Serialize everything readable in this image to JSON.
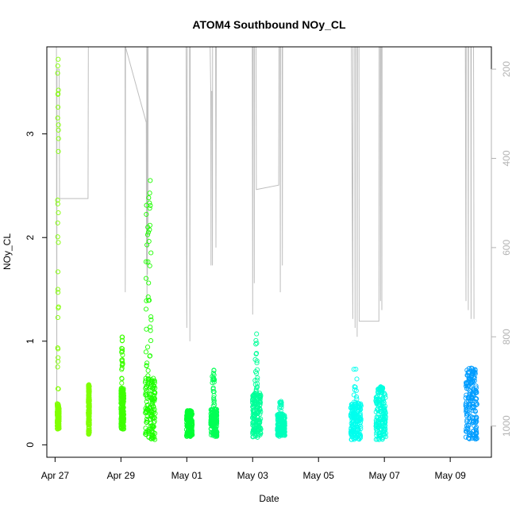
{
  "chart_data": {
    "type": "scatter",
    "title": "ATOM4 Southbound NOy_CL",
    "xlabel": "Date",
    "ylabel": "NOy_CL",
    "secondary_ylabel": "",
    "x_range": [
      "2018-04-26T18:00",
      "2018-05-10T06:00"
    ],
    "ylim": [
      -0.12,
      3.84
    ],
    "y2lim": [
      1070,
      150
    ],
    "x_ticks": [
      {
        "date": "2018-04-27",
        "label": "Apr 27"
      },
      {
        "date": "2018-04-29",
        "label": "Apr 29"
      },
      {
        "date": "2018-05-01",
        "label": "May 01"
      },
      {
        "date": "2018-05-03",
        "label": "May 03"
      },
      {
        "date": "2018-05-05",
        "label": "May 05"
      },
      {
        "date": "2018-05-07",
        "label": "May 07"
      },
      {
        "date": "2018-05-09",
        "label": "May 09"
      }
    ],
    "y_ticks": [
      0,
      1,
      2,
      3
    ],
    "y2_ticks": [
      200,
      400,
      600,
      800,
      1000
    ],
    "grid": false,
    "marker": "open-circle",
    "colors": {
      "point_scale": [
        "#80ff00",
        "#00ff00",
        "#00ffcc",
        "#0099ff"
      ],
      "pressure_line": "#bebebe"
    },
    "flights": [
      {
        "start": "2018-04-27T01:30",
        "end": "2018-04-27T03:00",
        "color": "#80ff00",
        "base": [
          0.15,
          0.4
        ],
        "max": 3.72,
        "plume_start": 0.25,
        "plume_end": 0.75
      },
      {
        "start": "2018-04-28T00:15",
        "end": "2018-04-28T01:05",
        "color": "#7fff00",
        "base": [
          0.1,
          0.45
        ],
        "max": 0.58,
        "plume_start": 0.1,
        "plume_end": 0.9
      },
      {
        "start": "2018-04-29T00:00",
        "end": "2018-04-29T02:10",
        "color": "#3dff00",
        "base": [
          0.15,
          0.55
        ],
        "max": 1.04,
        "plume_start": 0.2,
        "plume_end": 0.6
      },
      {
        "start": "2018-04-29T17:45",
        "end": "2018-04-30T01:00",
        "color": "#1eff00",
        "base": [
          0.05,
          0.65
        ],
        "max": 2.55,
        "plume_start": 0.05,
        "plume_end": 0.6
      },
      {
        "start": "2018-04-30T23:45",
        "end": "2018-05-01T04:00",
        "color": "#00ff33",
        "base": [
          0.08,
          0.3
        ],
        "max": 0.33,
        "plume_start": 0.1,
        "plume_end": 0.9
      },
      {
        "start": "2018-05-01T17:30",
        "end": "2018-05-01T22:00",
        "color": "#00ff55",
        "base": [
          0.08,
          0.35
        ],
        "max": 0.72,
        "plume_start": 0.2,
        "plume_end": 0.6
      },
      {
        "start": "2018-05-02T23:45",
        "end": "2018-05-03T06:00",
        "color": "#00ff99",
        "base": [
          0.07,
          0.5
        ],
        "max": 1.07,
        "plume_start": 0.3,
        "plume_end": 0.6
      },
      {
        "start": "2018-05-03T18:00",
        "end": "2018-05-03T23:30",
        "color": "#00ffbb",
        "base": [
          0.08,
          0.3
        ],
        "max": 0.42,
        "plume_start": 0.3,
        "plume_end": 0.6
      },
      {
        "start": "2018-05-05T23:30",
        "end": "2018-05-06T07:00",
        "color": "#00ffee",
        "base": [
          0.05,
          0.4
        ],
        "max": 0.73,
        "plume_start": 0.3,
        "plume_end": 0.6
      },
      {
        "start": "2018-05-06T17:45",
        "end": "2018-05-07T01:00",
        "color": "#00ffe0",
        "base": [
          0.05,
          0.5
        ],
        "max": 0.56,
        "plume_start": 0.2,
        "plume_end": 0.7
      },
      {
        "start": "2018-05-09T11:15",
        "end": "2018-05-09T19:30",
        "color": "#009dff",
        "base": [
          0.05,
          0.6
        ],
        "max": 0.74,
        "plume_start": 0.1,
        "plume_end": 0.9
      }
    ],
    "pressure_profile": [
      [
        "2018-04-27T00:00",
        150
      ],
      [
        "2018-04-27T01:00",
        150
      ],
      [
        "2018-04-27T01:15",
        1000
      ],
      [
        "2018-04-27T01:25",
        200
      ],
      [
        "2018-04-27T03:00",
        200
      ],
      [
        "2018-04-27T03:15",
        490
      ],
      [
        "2018-04-28T00:00",
        490
      ],
      [
        "2018-04-28T00:15",
        150
      ],
      [
        "2018-04-28T17:30",
        150
      ],
      [
        "2018-04-29T03:00",
        150
      ],
      [
        "2018-04-29T03:10",
        700
      ],
      [
        "2018-04-29T03:20",
        150
      ],
      [
        "2018-04-29T18:30",
        320
      ],
      [
        "2018-04-29T18:40",
        640
      ],
      [
        "2018-04-29T18:50",
        150
      ],
      [
        "2018-04-29T19:00",
        720
      ],
      [
        "2018-04-29T19:10",
        150
      ],
      [
        "2018-04-29T19:20",
        660
      ],
      [
        "2018-04-29T19:30",
        150
      ],
      [
        "2018-04-29T19:40",
        600
      ],
      [
        "2018-04-29T19:50",
        150
      ],
      [
        "2018-04-29T20:30",
        150
      ],
      [
        "2018-04-30T00:00",
        150
      ],
      [
        "2018-04-30T23:30",
        150
      ],
      [
        "2018-05-01T00:00",
        780
      ],
      [
        "2018-05-01T00:20",
        150
      ],
      [
        "2018-05-01T02:00",
        150
      ],
      [
        "2018-05-01T02:15",
        810
      ],
      [
        "2018-05-01T02:30",
        150
      ],
      [
        "2018-05-01T17:00",
        150
      ],
      [
        "2018-05-01T17:30",
        250
      ],
      [
        "2018-05-01T17:40",
        640
      ],
      [
        "2018-05-01T17:50",
        250
      ],
      [
        "2018-05-01T18:30",
        250
      ],
      [
        "2018-05-01T18:40",
        640
      ],
      [
        "2018-05-01T18:50",
        150
      ],
      [
        "2018-05-01T21:00",
        150
      ],
      [
        "2018-05-01T21:15",
        600
      ],
      [
        "2018-05-01T21:30",
        150
      ],
      [
        "2018-05-02T23:45",
        150
      ],
      [
        "2018-05-03T00:00",
        750
      ],
      [
        "2018-05-03T00:10",
        150
      ],
      [
        "2018-05-03T01:00",
        150
      ],
      [
        "2018-05-03T01:10",
        680
      ],
      [
        "2018-05-03T01:20",
        150
      ],
      [
        "2018-05-03T02:30",
        150
      ],
      [
        "2018-05-03T02:40",
        470
      ],
      [
        "2018-05-03T19:00",
        460
      ],
      [
        "2018-05-03T19:10",
        150
      ],
      [
        "2018-05-03T20:00",
        150
      ],
      [
        "2018-05-03T20:10",
        700
      ],
      [
        "2018-05-03T20:20",
        150
      ],
      [
        "2018-05-03T21:30",
        150
      ],
      [
        "2018-05-03T21:40",
        640
      ],
      [
        "2018-05-03T21:50",
        150
      ],
      [
        "2018-05-03T23:00",
        150
      ],
      [
        "2018-05-04T00:00",
        150
      ],
      [
        "2018-05-06T00:00",
        150
      ],
      [
        "2018-05-06T01:00",
        760
      ],
      [
        "2018-05-06T01:10",
        150
      ],
      [
        "2018-05-06T02:30",
        150
      ],
      [
        "2018-05-06T02:40",
        780
      ],
      [
        "2018-05-06T02:50",
        150
      ],
      [
        "2018-05-06T04:00",
        150
      ],
      [
        "2018-05-06T04:10",
        800
      ],
      [
        "2018-05-06T04:20",
        150
      ],
      [
        "2018-05-06T05:30",
        150
      ],
      [
        "2018-05-06T05:40",
        765
      ],
      [
        "2018-05-06T05:50",
        765
      ],
      [
        "2018-05-06T20:00",
        765
      ],
      [
        "2018-05-06T20:10",
        150
      ],
      [
        "2018-05-06T21:00",
        150
      ],
      [
        "2018-05-06T21:10",
        720
      ],
      [
        "2018-05-06T21:20",
        150
      ],
      [
        "2018-05-06T22:00",
        150
      ],
      [
        "2018-05-06T22:10",
        740
      ],
      [
        "2018-05-06T22:20",
        150
      ],
      [
        "2018-05-09T11:00",
        150
      ],
      [
        "2018-05-09T11:30",
        720
      ],
      [
        "2018-05-09T11:40",
        150
      ],
      [
        "2018-05-09T13:00",
        150
      ],
      [
        "2018-05-09T13:10",
        740
      ],
      [
        "2018-05-09T13:20",
        150
      ],
      [
        "2018-05-09T15:00",
        150
      ],
      [
        "2018-05-09T15:10",
        760
      ],
      [
        "2018-05-09T15:20",
        150
      ],
      [
        "2018-05-09T17:00",
        150
      ],
      [
        "2018-05-09T17:10",
        370
      ],
      [
        "2018-05-09T17:20",
        760
      ]
    ]
  }
}
